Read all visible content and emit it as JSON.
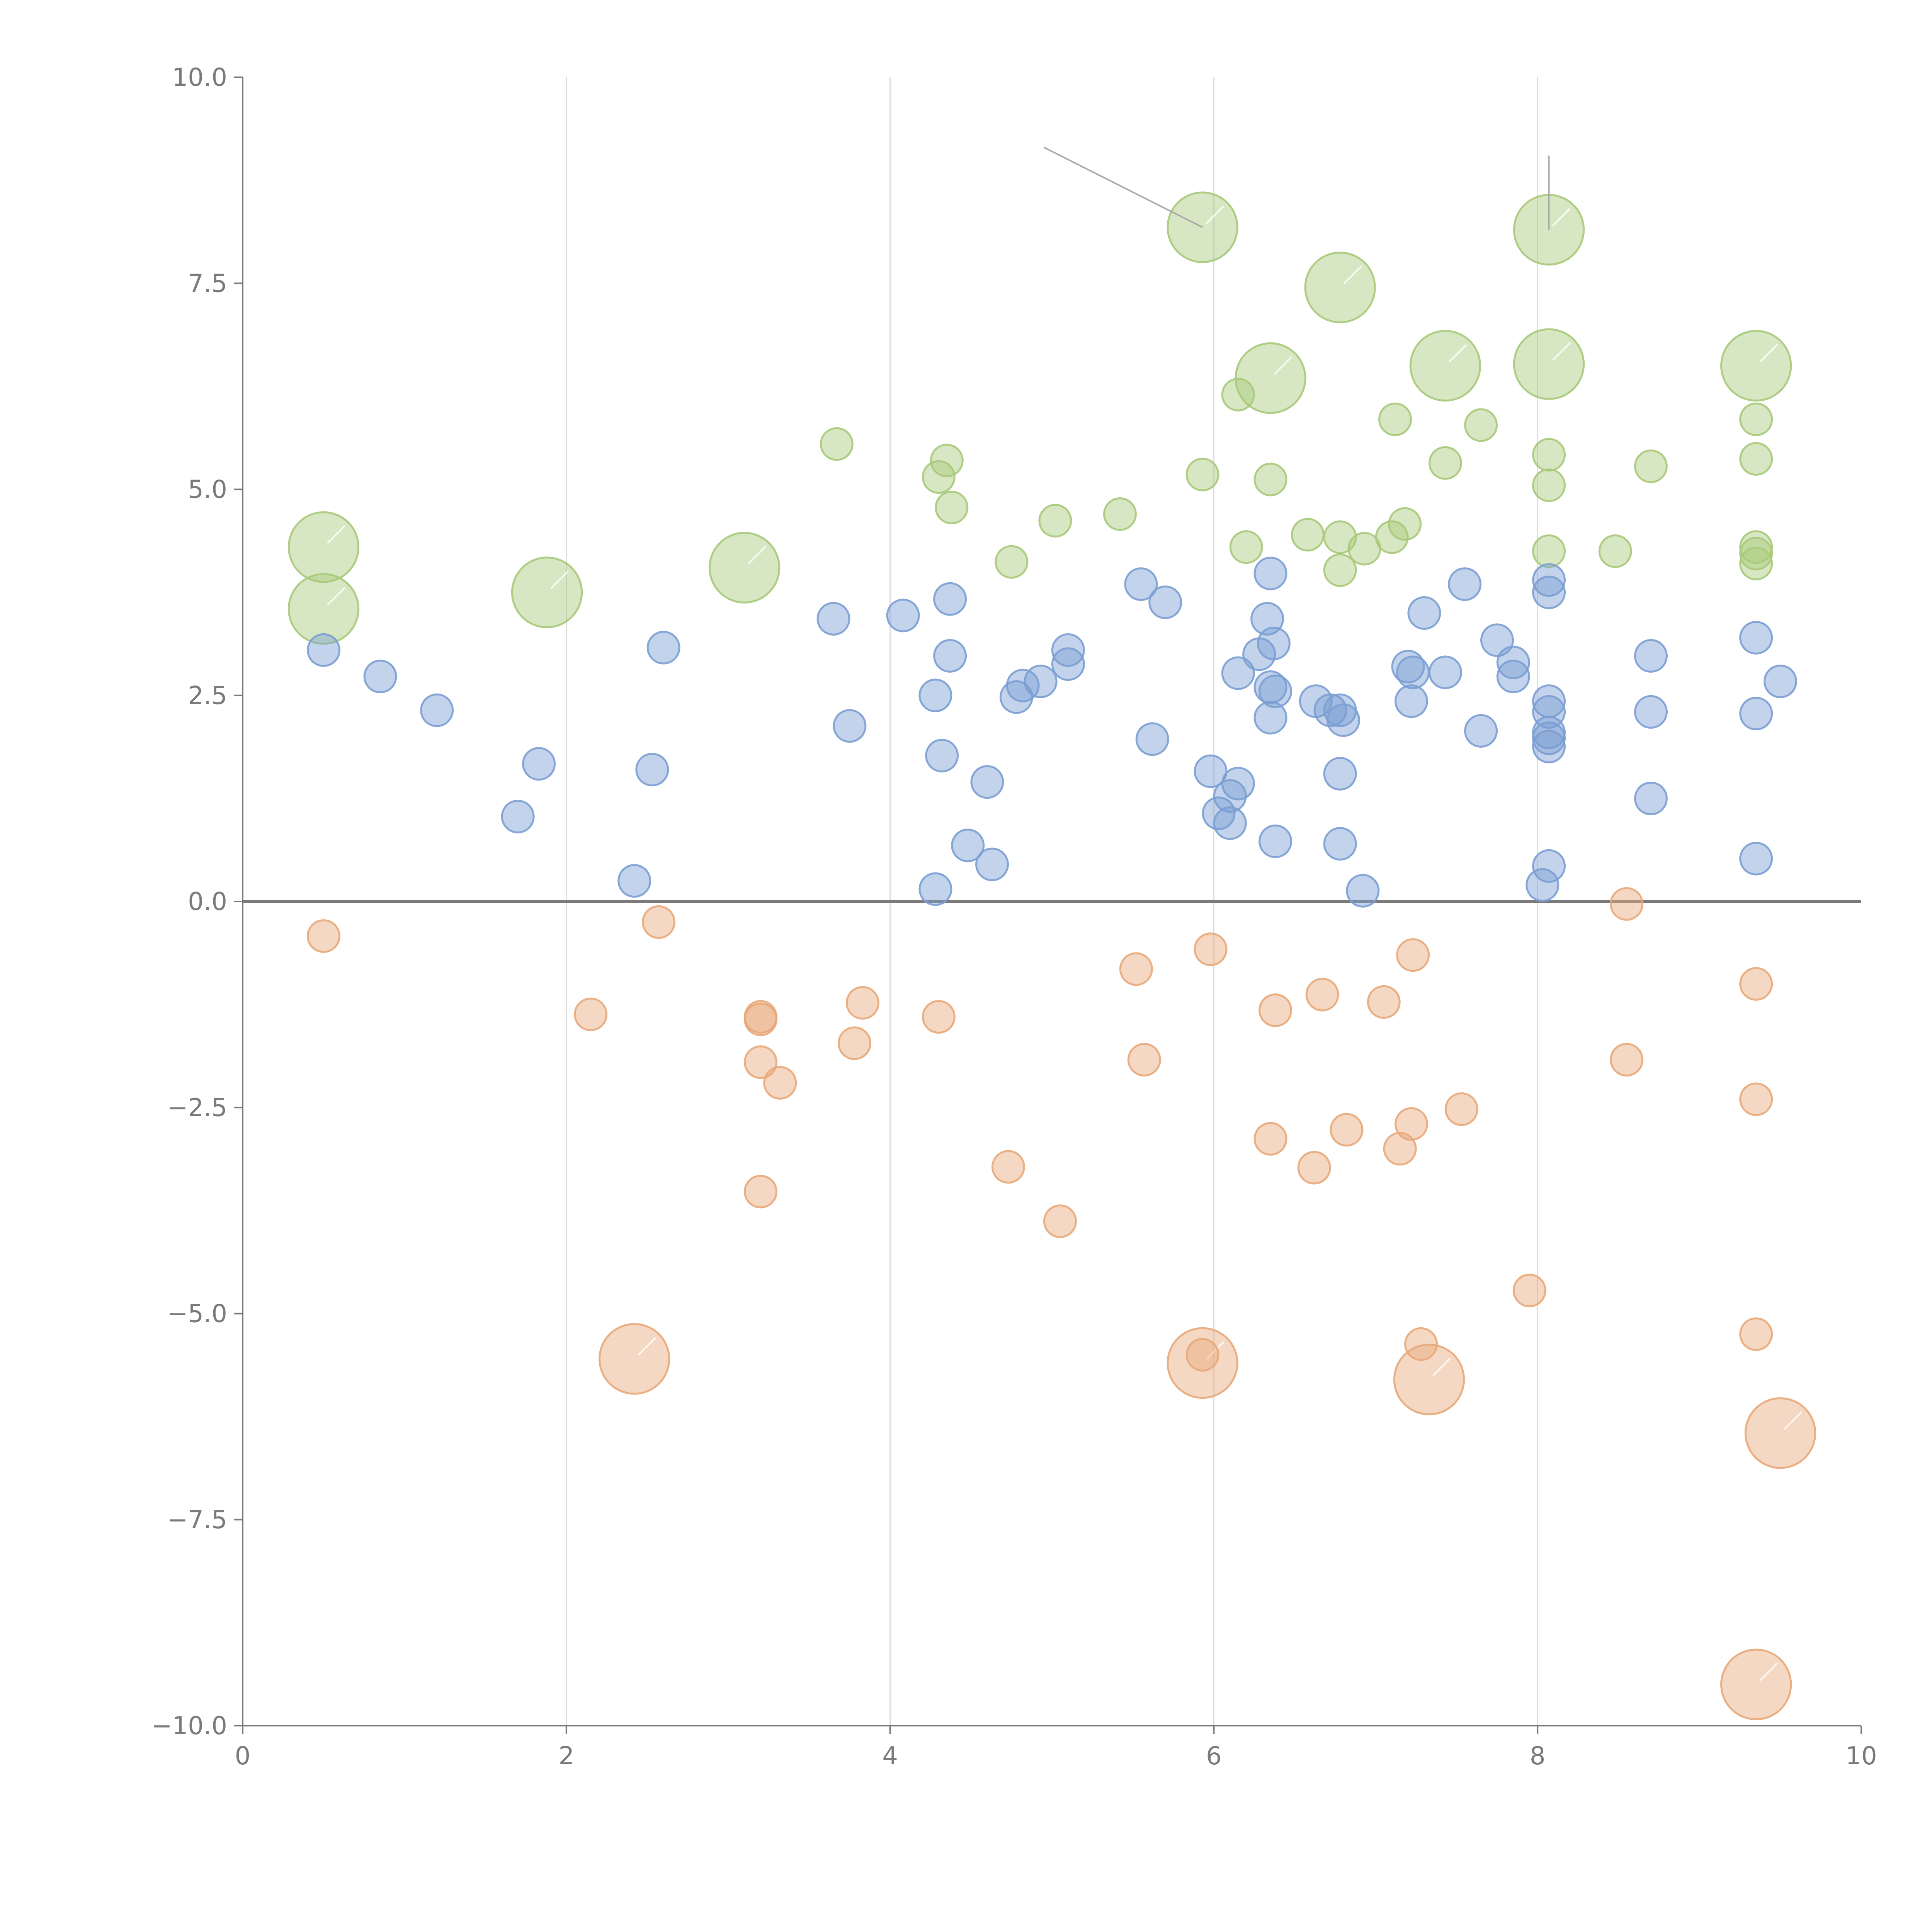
{
  "chart_data": {
    "type": "scatter",
    "title": "",
    "xlabel": "",
    "ylabel": "",
    "xlim": [
      0,
      10
    ],
    "ylim": [
      -10,
      10
    ],
    "grid": "vertical",
    "zero_line": 0,
    "x_ticks": [
      {
        "value": 0,
        "label": "0"
      },
      {
        "value": 2,
        "label": "2"
      },
      {
        "value": 4,
        "label": "4"
      },
      {
        "value": 6,
        "label": "6"
      },
      {
        "value": 8,
        "label": "8"
      },
      {
        "value": 10,
        "label": "10"
      }
    ],
    "y_ticks": [
      {
        "value": 10,
        "label": "10.0"
      },
      {
        "value": 7.5,
        "label": "7.5"
      },
      {
        "value": 5,
        "label": "5.0"
      },
      {
        "value": 2.5,
        "label": "2.5"
      },
      {
        "value": 0,
        "label": "0.0"
      },
      {
        "value": -2.5,
        "label": "−2.5"
      },
      {
        "value": -5,
        "label": "−5.0"
      },
      {
        "value": -7.5,
        "label": "−7.5"
      },
      {
        "value": -10,
        "label": "−10.0"
      }
    ],
    "size_levels": {
      "small": 1,
      "large": 2.2
    },
    "series": [
      {
        "name": "green",
        "color": "#a9c97a",
        "points": [
          [
            0.5,
            4.3,
            2.2
          ],
          [
            0.5,
            3.55,
            2.2
          ],
          [
            1.88,
            3.75,
            2.2
          ],
          [
            3.1,
            4.05,
            2.2
          ],
          [
            5.93,
            8.18,
            2.2
          ],
          [
            6.78,
            7.45,
            2.2
          ],
          [
            6.35,
            6.35,
            2.2
          ],
          [
            7.43,
            6.5,
            2.2
          ],
          [
            8.07,
            8.15,
            2.2
          ],
          [
            8.07,
            6.52,
            2.2
          ],
          [
            9.35,
            6.5,
            2.2
          ],
          [
            3.67,
            5.55,
            1
          ],
          [
            4.3,
            5.15,
            1
          ],
          [
            4.35,
            5.35,
            1
          ],
          [
            4.38,
            4.78,
            1
          ],
          [
            4.75,
            4.12,
            1
          ],
          [
            5.02,
            4.62,
            1
          ],
          [
            5.42,
            4.7,
            1
          ],
          [
            5.93,
            5.18,
            1
          ],
          [
            6.15,
            6.15,
            1
          ],
          [
            6.2,
            4.3,
            1
          ],
          [
            6.35,
            5.12,
            1
          ],
          [
            6.58,
            4.45,
            1
          ],
          [
            6.78,
            4.42,
            1
          ],
          [
            6.78,
            4.02,
            1
          ],
          [
            6.93,
            4.28,
            1
          ],
          [
            7.1,
            4.42,
            1
          ],
          [
            7.12,
            5.85,
            1
          ],
          [
            7.18,
            4.58,
            1
          ],
          [
            7.43,
            5.32,
            1
          ],
          [
            7.65,
            5.78,
            1
          ],
          [
            8.07,
            5.42,
            1
          ],
          [
            8.07,
            5.05,
            1
          ],
          [
            8.07,
            4.25,
            1
          ],
          [
            8.48,
            4.25,
            1
          ],
          [
            8.7,
            5.28,
            1
          ],
          [
            9.35,
            5.85,
            1
          ],
          [
            9.35,
            5.37,
            1
          ],
          [
            9.35,
            4.3,
            1
          ],
          [
            9.35,
            4.1,
            1
          ],
          [
            9.35,
            4.22,
            1
          ]
        ]
      },
      {
        "name": "blue",
        "color": "#7b9ed3",
        "points": [
          [
            0.5,
            3.05,
            1
          ],
          [
            0.85,
            2.73,
            1
          ],
          [
            1.2,
            2.32,
            1
          ],
          [
            1.7,
            1.03,
            1
          ],
          [
            1.83,
            1.67,
            1
          ],
          [
            2.42,
            0.25,
            1
          ],
          [
            2.53,
            1.6,
            1
          ],
          [
            2.6,
            3.08,
            1
          ],
          [
            3.65,
            3.43,
            1
          ],
          [
            3.75,
            2.13,
            1
          ],
          [
            4.08,
            3.47,
            1
          ],
          [
            4.28,
            2.5,
            1
          ],
          [
            4.28,
            0.15,
            1
          ],
          [
            4.32,
            1.77,
            1
          ],
          [
            4.37,
            3.67,
            1
          ],
          [
            4.37,
            2.98,
            1
          ],
          [
            4.48,
            0.68,
            1
          ],
          [
            4.6,
            1.45,
            1
          ],
          [
            4.63,
            0.45,
            1
          ],
          [
            4.78,
            2.48,
            1
          ],
          [
            4.82,
            2.62,
            1
          ],
          [
            4.93,
            2.67,
            1
          ],
          [
            5.1,
            3.05,
            1
          ],
          [
            5.1,
            2.88,
            1
          ],
          [
            5.55,
            3.85,
            1
          ],
          [
            5.62,
            1.97,
            1
          ],
          [
            5.7,
            3.63,
            1
          ],
          [
            5.98,
            1.58,
            1
          ],
          [
            6.03,
            1.07,
            1
          ],
          [
            6.1,
            1.28,
            1
          ],
          [
            6.1,
            0.95,
            1
          ],
          [
            6.15,
            2.77,
            1
          ],
          [
            6.15,
            1.43,
            1
          ],
          [
            6.28,
            3.0,
            1
          ],
          [
            6.33,
            3.43,
            1
          ],
          [
            6.35,
            3.98,
            1
          ],
          [
            6.35,
            2.6,
            1
          ],
          [
            6.35,
            2.23,
            1
          ],
          [
            6.37,
            3.13,
            1
          ],
          [
            6.38,
            2.55,
            1
          ],
          [
            6.38,
            0.73,
            1
          ],
          [
            6.63,
            2.43,
            1
          ],
          [
            6.72,
            2.32,
            1
          ],
          [
            6.78,
            2.32,
            1
          ],
          [
            6.78,
            1.55,
            1
          ],
          [
            6.78,
            0.7,
            1
          ],
          [
            6.8,
            2.2,
            1
          ],
          [
            6.92,
            0.13,
            1
          ],
          [
            7.2,
            2.85,
            1
          ],
          [
            7.22,
            2.43,
            1
          ],
          [
            7.23,
            2.78,
            1
          ],
          [
            7.3,
            3.5,
            1
          ],
          [
            7.43,
            2.78,
            1
          ],
          [
            7.55,
            3.85,
            1
          ],
          [
            7.65,
            2.07,
            1
          ],
          [
            7.75,
            3.17,
            1
          ],
          [
            7.85,
            2.9,
            1
          ],
          [
            7.85,
            2.73,
            1
          ],
          [
            8.03,
            0.2,
            1
          ],
          [
            8.07,
            3.9,
            1
          ],
          [
            8.07,
            3.75,
            1
          ],
          [
            8.07,
            2.43,
            1
          ],
          [
            8.07,
            2.3,
            1
          ],
          [
            8.07,
            2.05,
            1
          ],
          [
            8.07,
            1.98,
            1
          ],
          [
            8.07,
            1.88,
            1
          ],
          [
            8.07,
            0.43,
            1
          ],
          [
            8.7,
            2.98,
            1
          ],
          [
            8.7,
            2.3,
            1
          ],
          [
            8.7,
            1.25,
            1
          ],
          [
            9.35,
            3.2,
            1
          ],
          [
            9.35,
            2.28,
            1
          ],
          [
            9.35,
            0.52,
            1
          ],
          [
            9.5,
            2.67,
            1
          ]
        ]
      },
      {
        "name": "orange",
        "color": "#e8a979",
        "points": [
          [
            2.42,
            -5.55,
            2.2
          ],
          [
            5.93,
            -5.6,
            2.2
          ],
          [
            7.33,
            -5.8,
            2.2
          ],
          [
            9.5,
            -6.45,
            2.2
          ],
          [
            9.35,
            -9.5,
            2.2
          ],
          [
            0.5,
            -0.42,
            1
          ],
          [
            2.15,
            -1.37,
            1
          ],
          [
            2.57,
            -0.25,
            1
          ],
          [
            3.2,
            -1.4,
            1
          ],
          [
            3.2,
            -1.43,
            1
          ],
          [
            3.2,
            -1.95,
            1
          ],
          [
            3.2,
            -3.52,
            1
          ],
          [
            3.32,
            -2.2,
            1
          ],
          [
            3.78,
            -1.72,
            1
          ],
          [
            3.83,
            -1.23,
            1
          ],
          [
            4.3,
            -1.4,
            1
          ],
          [
            4.73,
            -3.22,
            1
          ],
          [
            5.05,
            -3.88,
            1
          ],
          [
            5.52,
            -0.82,
            1
          ],
          [
            5.57,
            -1.92,
            1
          ],
          [
            5.93,
            -5.5,
            1
          ],
          [
            5.98,
            -0.58,
            1
          ],
          [
            6.35,
            -2.88,
            1
          ],
          [
            6.38,
            -1.32,
            1
          ],
          [
            6.62,
            -3.23,
            1
          ],
          [
            6.67,
            -1.13,
            1
          ],
          [
            6.82,
            -2.77,
            1
          ],
          [
            7.05,
            -1.22,
            1
          ],
          [
            7.15,
            -3.0,
            1
          ],
          [
            7.22,
            -2.7,
            1
          ],
          [
            7.23,
            -0.65,
            1
          ],
          [
            7.28,
            -5.37,
            1
          ],
          [
            7.53,
            -2.52,
            1
          ],
          [
            7.95,
            -4.72,
            1
          ],
          [
            8.55,
            -0.03,
            1
          ],
          [
            8.55,
            -1.92,
            1
          ],
          [
            9.35,
            -1.0,
            1
          ],
          [
            9.35,
            -2.4,
            1
          ],
          [
            9.35,
            -5.25,
            1
          ]
        ]
      }
    ],
    "annotations": [
      {
        "point": [
          5.93,
          8.18
        ],
        "to": [
          4.95,
          9.15
        ]
      },
      {
        "point": [
          8.07,
          8.15
        ],
        "to": [
          8.07,
          9.05
        ]
      }
    ]
  }
}
